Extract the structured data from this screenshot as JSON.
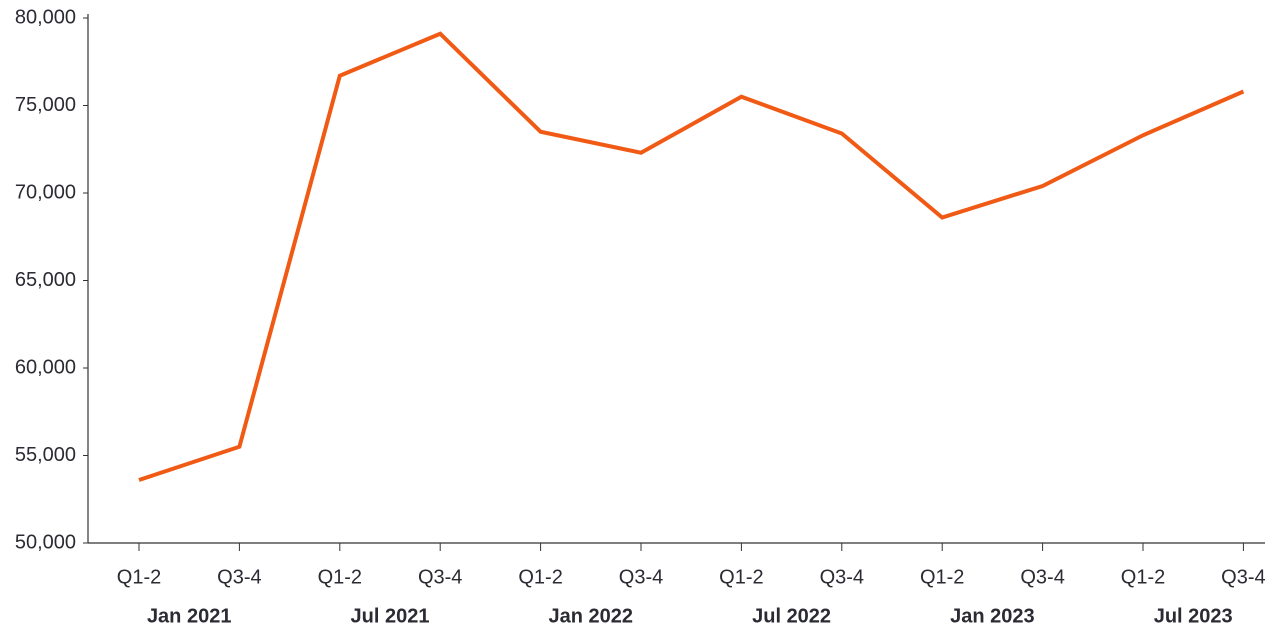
{
  "chart_data": {
    "type": "line",
    "categories": [
      "Q1-2",
      "Q3-4",
      "Q1-2",
      "Q3-4",
      "Q1-2",
      "Q3-4",
      "Q1-2",
      "Q3-4",
      "Q1-2",
      "Q3-4",
      "Q1-2",
      "Q3-4"
    ],
    "groups": [
      "Jan 2021",
      "Jul 2021",
      "Jan 2022",
      "Jul 2022",
      "Jan 2023",
      "Jul 2023"
    ],
    "series": [
      {
        "color": "#f05a14",
        "values": [
          53600,
          55500,
          76700,
          79100,
          73500,
          72300,
          75500,
          73400,
          68600,
          70400,
          73300,
          75800
        ]
      }
    ],
    "ylim": [
      50000,
      80000
    ],
    "yticks": [
      {
        "value": 50000,
        "label": "50,000"
      },
      {
        "value": 55000,
        "label": "55,000"
      },
      {
        "value": 60000,
        "label": "60,000"
      },
      {
        "value": 65000,
        "label": "65,000"
      },
      {
        "value": 70000,
        "label": "70,000"
      },
      {
        "value": 75000,
        "label": "75,000"
      },
      {
        "value": 80000,
        "label": "80,000"
      }
    ],
    "grid": false
  }
}
